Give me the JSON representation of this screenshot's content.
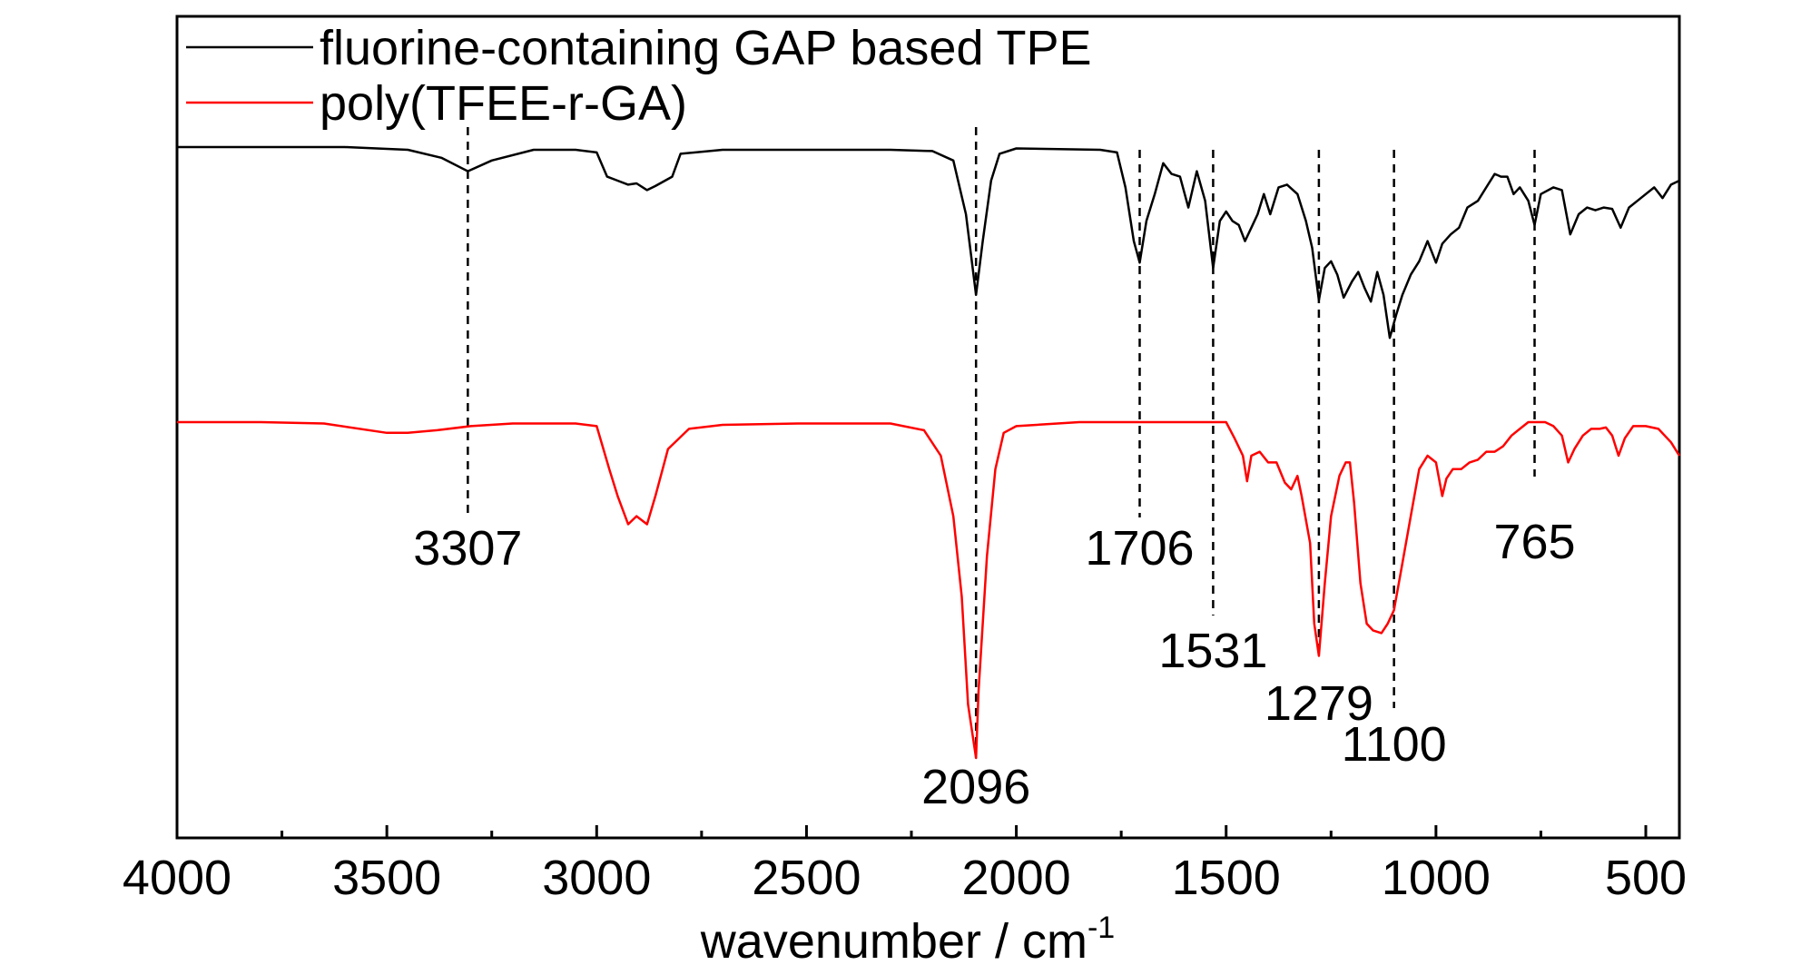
{
  "chart_data": {
    "type": "line",
    "xlabel": "wavenumber / cm",
    "xlabel_superscript": "-1",
    "xlim": [
      4000,
      420
    ],
    "x_reversed": true,
    "ylabel": "",
    "y_ticks_shown": false,
    "grid": false,
    "legend_placement": "top-left",
    "x_ticks": [
      4000,
      3500,
      3000,
      2500,
      2000,
      1500,
      1000,
      500
    ],
    "x_minor_ticks": [
      3750,
      3250,
      2750,
      2250,
      1750,
      1250,
      750
    ],
    "series": [
      {
        "name": "fluorine-containing GAP based TPE",
        "color": "#000000",
        "points": [
          [
            4000,
            0.0
          ],
          [
            3800,
            0.0
          ],
          [
            3600,
            0.0
          ],
          [
            3450,
            0.02
          ],
          [
            3370,
            0.08
          ],
          [
            3307,
            0.18
          ],
          [
            3250,
            0.1
          ],
          [
            3150,
            0.02
          ],
          [
            3050,
            0.02
          ],
          [
            3000,
            0.04
          ],
          [
            2975,
            0.22
          ],
          [
            2950,
            0.25
          ],
          [
            2925,
            0.28
          ],
          [
            2905,
            0.27
          ],
          [
            2880,
            0.32
          ],
          [
            2860,
            0.29
          ],
          [
            2820,
            0.22
          ],
          [
            2800,
            0.05
          ],
          [
            2700,
            0.02
          ],
          [
            2500,
            0.02
          ],
          [
            2300,
            0.02
          ],
          [
            2200,
            0.03
          ],
          [
            2150,
            0.1
          ],
          [
            2120,
            0.5
          ],
          [
            2096,
            1.1
          ],
          [
            2080,
            0.7
          ],
          [
            2060,
            0.25
          ],
          [
            2040,
            0.05
          ],
          [
            2000,
            0.01
          ],
          [
            1800,
            0.02
          ],
          [
            1760,
            0.04
          ],
          [
            1740,
            0.3
          ],
          [
            1720,
            0.7
          ],
          [
            1706,
            0.86
          ],
          [
            1690,
            0.55
          ],
          [
            1670,
            0.35
          ],
          [
            1650,
            0.12
          ],
          [
            1630,
            0.2
          ],
          [
            1610,
            0.22
          ],
          [
            1590,
            0.45
          ],
          [
            1570,
            0.18
          ],
          [
            1550,
            0.4
          ],
          [
            1531,
            0.9
          ],
          [
            1515,
            0.55
          ],
          [
            1500,
            0.48
          ],
          [
            1485,
            0.55
          ],
          [
            1470,
            0.58
          ],
          [
            1455,
            0.7
          ],
          [
            1440,
            0.6
          ],
          [
            1425,
            0.5
          ],
          [
            1410,
            0.35
          ],
          [
            1395,
            0.5
          ],
          [
            1375,
            0.3
          ],
          [
            1355,
            0.28
          ],
          [
            1330,
            0.35
          ],
          [
            1310,
            0.55
          ],
          [
            1295,
            0.75
          ],
          [
            1279,
            1.14
          ],
          [
            1265,
            0.9
          ],
          [
            1250,
            0.85
          ],
          [
            1235,
            0.95
          ],
          [
            1220,
            1.12
          ],
          [
            1200,
            1.0
          ],
          [
            1185,
            0.93
          ],
          [
            1170,
            1.05
          ],
          [
            1155,
            1.15
          ],
          [
            1140,
            0.93
          ],
          [
            1125,
            1.1
          ],
          [
            1110,
            1.42
          ],
          [
            1095,
            1.25
          ],
          [
            1080,
            1.1
          ],
          [
            1060,
            0.95
          ],
          [
            1040,
            0.85
          ],
          [
            1020,
            0.7
          ],
          [
            1000,
            0.86
          ],
          [
            985,
            0.72
          ],
          [
            965,
            0.65
          ],
          [
            945,
            0.6
          ],
          [
            925,
            0.45
          ],
          [
            900,
            0.4
          ],
          [
            880,
            0.3
          ],
          [
            860,
            0.2
          ],
          [
            845,
            0.22
          ],
          [
            830,
            0.22
          ],
          [
            815,
            0.35
          ],
          [
            800,
            0.3
          ],
          [
            780,
            0.4
          ],
          [
            765,
            0.58
          ],
          [
            750,
            0.35
          ],
          [
            720,
            0.3
          ],
          [
            700,
            0.32
          ],
          [
            680,
            0.65
          ],
          [
            660,
            0.5
          ],
          [
            640,
            0.45
          ],
          [
            620,
            0.47
          ],
          [
            600,
            0.45
          ],
          [
            580,
            0.46
          ],
          [
            560,
            0.6
          ],
          [
            540,
            0.45
          ],
          [
            520,
            0.4
          ],
          [
            500,
            0.35
          ],
          [
            480,
            0.3
          ],
          [
            460,
            0.38
          ],
          [
            440,
            0.28
          ],
          [
            420,
            0.25
          ]
        ]
      },
      {
        "name": "poly(TFEE-r-GA)",
        "color": "#ff0000",
        "points": [
          [
            4000,
            0.0
          ],
          [
            3800,
            0.0
          ],
          [
            3650,
            0.01
          ],
          [
            3500,
            0.08
          ],
          [
            3450,
            0.08
          ],
          [
            3380,
            0.06
          ],
          [
            3300,
            0.03
          ],
          [
            3200,
            0.01
          ],
          [
            3050,
            0.01
          ],
          [
            3000,
            0.03
          ],
          [
            2970,
            0.35
          ],
          [
            2950,
            0.55
          ],
          [
            2925,
            0.76
          ],
          [
            2905,
            0.7
          ],
          [
            2880,
            0.76
          ],
          [
            2860,
            0.55
          ],
          [
            2830,
            0.2
          ],
          [
            2780,
            0.05
          ],
          [
            2700,
            0.02
          ],
          [
            2520,
            0.01
          ],
          [
            2300,
            0.01
          ],
          [
            2220,
            0.06
          ],
          [
            2180,
            0.25
          ],
          [
            2150,
            0.7
          ],
          [
            2130,
            1.3
          ],
          [
            2115,
            2.1
          ],
          [
            2096,
            2.5
          ],
          [
            2090,
            2.0
          ],
          [
            2070,
            1.0
          ],
          [
            2050,
            0.35
          ],
          [
            2030,
            0.08
          ],
          [
            2000,
            0.03
          ],
          [
            1850,
            0.0
          ],
          [
            1700,
            0.0
          ],
          [
            1600,
            0.0
          ],
          [
            1500,
            0.0
          ],
          [
            1480,
            0.12
          ],
          [
            1460,
            0.25
          ],
          [
            1450,
            0.44
          ],
          [
            1440,
            0.25
          ],
          [
            1420,
            0.22
          ],
          [
            1400,
            0.3
          ],
          [
            1380,
            0.3
          ],
          [
            1360,
            0.45
          ],
          [
            1345,
            0.5
          ],
          [
            1330,
            0.4
          ],
          [
            1320,
            0.55
          ],
          [
            1300,
            0.9
          ],
          [
            1290,
            1.5
          ],
          [
            1279,
            1.74
          ],
          [
            1265,
            1.2
          ],
          [
            1250,
            0.7
          ],
          [
            1230,
            0.4
          ],
          [
            1215,
            0.3
          ],
          [
            1205,
            0.3
          ],
          [
            1195,
            0.6
          ],
          [
            1180,
            1.2
          ],
          [
            1165,
            1.5
          ],
          [
            1150,
            1.55
          ],
          [
            1130,
            1.57
          ],
          [
            1115,
            1.5
          ],
          [
            1100,
            1.4
          ],
          [
            1080,
            1.05
          ],
          [
            1060,
            0.7
          ],
          [
            1040,
            0.35
          ],
          [
            1020,
            0.25
          ],
          [
            1000,
            0.3
          ],
          [
            985,
            0.55
          ],
          [
            975,
            0.42
          ],
          [
            960,
            0.35
          ],
          [
            940,
            0.35
          ],
          [
            920,
            0.3
          ],
          [
            900,
            0.28
          ],
          [
            880,
            0.22
          ],
          [
            860,
            0.22
          ],
          [
            840,
            0.18
          ],
          [
            820,
            0.1
          ],
          [
            800,
            0.05
          ],
          [
            780,
            0.0
          ],
          [
            765,
            0.0
          ],
          [
            740,
            0.0
          ],
          [
            720,
            0.03
          ],
          [
            700,
            0.1
          ],
          [
            685,
            0.3
          ],
          [
            670,
            0.2
          ],
          [
            650,
            0.1
          ],
          [
            630,
            0.05
          ],
          [
            610,
            0.05
          ],
          [
            595,
            0.04
          ],
          [
            580,
            0.1
          ],
          [
            565,
            0.25
          ],
          [
            550,
            0.12
          ],
          [
            530,
            0.03
          ],
          [
            500,
            0.03
          ],
          [
            470,
            0.05
          ],
          [
            440,
            0.15
          ],
          [
            420,
            0.25
          ]
        ]
      }
    ],
    "peak_markers": [
      {
        "x": 3307,
        "label": "3307"
      },
      {
        "x": 2096,
        "label": "2096"
      },
      {
        "x": 1706,
        "label": "1706"
      },
      {
        "x": 1531,
        "label": "1531"
      },
      {
        "x": 1279,
        "label": "1279"
      },
      {
        "x": 1100,
        "label": "1100"
      },
      {
        "x": 765,
        "label": "765"
      }
    ]
  }
}
